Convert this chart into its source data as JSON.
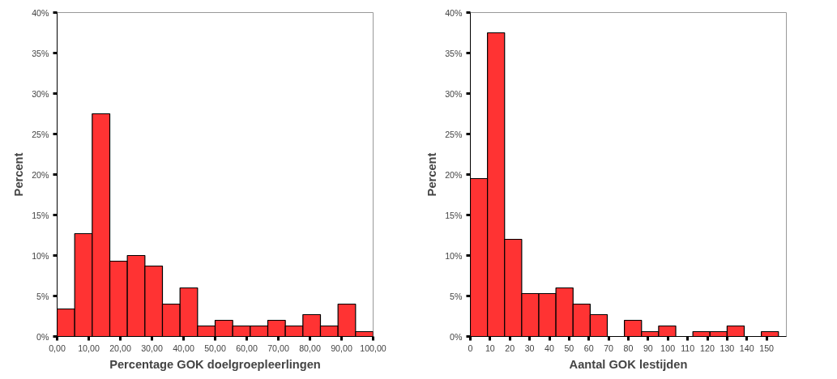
{
  "chart_data": [
    {
      "type": "histogram",
      "xlabel": "Percentage GOK doelgroepleerlingen",
      "ylabel": "Percent",
      "color": "#ff3333",
      "bins": [
        0,
        5.56,
        11.11,
        16.67,
        22.22,
        27.78,
        33.33,
        38.89,
        44.44,
        50,
        55.56,
        61.11,
        66.67,
        72.22,
        77.78,
        83.33,
        88.89,
        94.44,
        100
      ],
      "values": [
        3.4,
        12.7,
        27.5,
        9.3,
        10,
        8.7,
        4,
        6,
        1.3,
        2,
        1.3,
        1.3,
        2,
        1.3,
        2.7,
        1.3,
        4,
        0.6
      ],
      "xlim": [
        0,
        100
      ],
      "ylim": [
        0,
        40
      ],
      "xticks": [
        {
          "value": 0,
          "label": "0,00"
        },
        {
          "value": 10,
          "label": "10,00"
        },
        {
          "value": 20,
          "label": "20,00"
        },
        {
          "value": 30,
          "label": "30,00"
        },
        {
          "value": 40,
          "label": "40,00"
        },
        {
          "value": 50,
          "label": "50,00"
        },
        {
          "value": 60,
          "label": "60,00"
        },
        {
          "value": 70,
          "label": "70,00"
        },
        {
          "value": 80,
          "label": "80,00"
        },
        {
          "value": 90,
          "label": "90,00"
        },
        {
          "value": 100,
          "label": "100,00"
        }
      ],
      "yticks": [
        {
          "value": 0,
          "label": "0%"
        },
        {
          "value": 5,
          "label": "5%"
        },
        {
          "value": 10,
          "label": "10%"
        },
        {
          "value": 15,
          "label": "15%"
        },
        {
          "value": 20,
          "label": "20%"
        },
        {
          "value": 25,
          "label": "25%"
        },
        {
          "value": 30,
          "label": "30%"
        },
        {
          "value": 35,
          "label": "35%"
        },
        {
          "value": 40,
          "label": "40%"
        }
      ],
      "grid": false
    },
    {
      "type": "histogram",
      "xlabel": "Aantal GOK lestijden",
      "ylabel": "Percent",
      "color": "#ff3333",
      "bins": [
        0,
        8.67,
        17.33,
        26,
        34.67,
        43.33,
        52,
        60.67,
        69.33,
        78,
        86.67,
        95.33,
        104,
        112.67,
        121.33,
        130,
        138.67,
        147.33,
        156
      ],
      "values": [
        19.5,
        37.5,
        12,
        5.3,
        5.3,
        6,
        4,
        2.7,
        0,
        2,
        0.6,
        1.3,
        0,
        0.6,
        0.6,
        1.3,
        0,
        0.6
      ],
      "xlim": [
        0,
        160
      ],
      "ylim": [
        0,
        40
      ],
      "xticks": [
        0,
        10,
        20,
        30,
        40,
        50,
        60,
        70,
        80,
        90,
        100,
        110,
        120,
        130,
        140,
        150
      ],
      "yticks": [
        {
          "value": 0,
          "label": "0%"
        },
        {
          "value": 5,
          "label": "5%"
        },
        {
          "value": 10,
          "label": "10%"
        },
        {
          "value": 15,
          "label": "15%"
        },
        {
          "value": 20,
          "label": "20%"
        },
        {
          "value": 25,
          "label": "25%"
        },
        {
          "value": 30,
          "label": "30%"
        },
        {
          "value": 35,
          "label": "35%"
        },
        {
          "value": 40,
          "label": "40%"
        }
      ],
      "grid": false
    }
  ]
}
